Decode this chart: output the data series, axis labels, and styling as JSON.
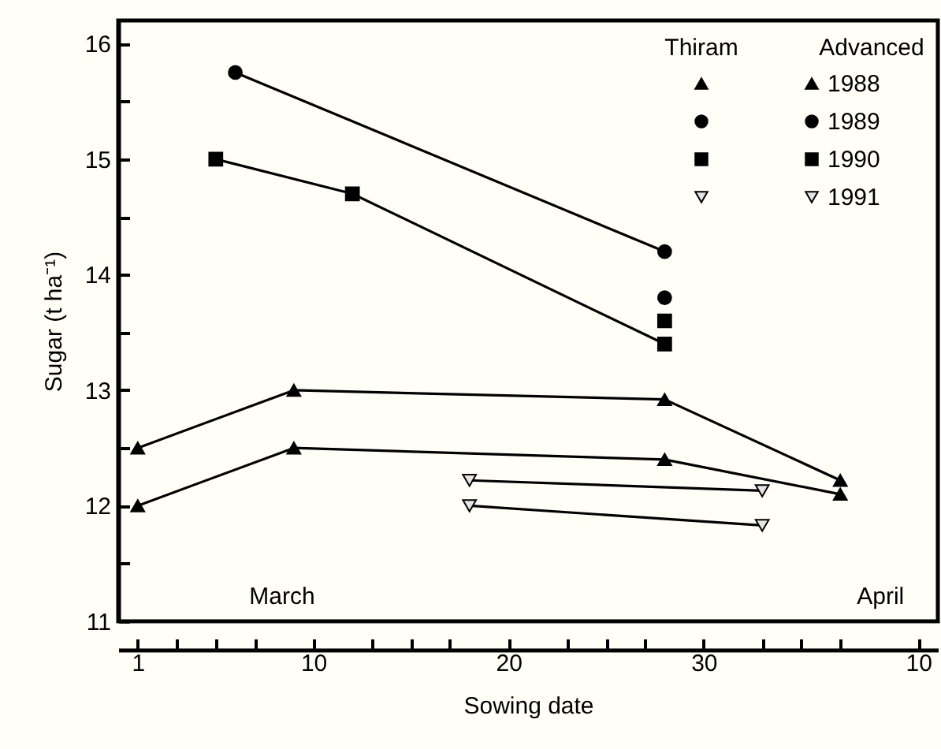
{
  "chart_data": {
    "type": "line",
    "xlabel": "Sowing date",
    "ylabel": "Sugar (t ha⁻¹)",
    "annotations": [
      "Thiram",
      "Advanced",
      "March",
      "April"
    ],
    "xlim": [
      "--02-29",
      "--04-11"
    ],
    "xticks": [
      {
        "value": "--03-01",
        "label": "1"
      },
      {
        "value": "--03-03",
        "label": null
      },
      {
        "value": "--03-05",
        "label": null
      },
      {
        "value": "--03-07",
        "label": null
      },
      {
        "value": "--03-10",
        "label": "10"
      },
      {
        "value": "--03-13",
        "label": null
      },
      {
        "value": "--03-15",
        "label": null
      },
      {
        "value": "--03-17",
        "label": null
      },
      {
        "value": "--03-20",
        "label": "20"
      },
      {
        "value": "--03-23",
        "label": null
      },
      {
        "value": "--03-25",
        "label": null
      },
      {
        "value": "--03-27",
        "label": null
      },
      {
        "value": "--03-30",
        "label": "30"
      },
      {
        "value": "--04-02",
        "label": null
      },
      {
        "value": "--04-04",
        "label": null
      },
      {
        "value": "--04-06",
        "label": null
      },
      {
        "value": "--04-10",
        "label": "10"
      }
    ],
    "ylim": [
      11,
      16.2
    ],
    "yticks": [
      11,
      {
        "value": 11.5,
        "label": null
      },
      12,
      {
        "value": 12.5,
        "label": null
      },
      13,
      {
        "value": 13.5,
        "label": null
      },
      14,
      {
        "value": 14.5,
        "label": null
      },
      15,
      {
        "value": 15.5,
        "label": null
      },
      16
    ],
    "grid": false,
    "legend": "top right",
    "series": [
      {
        "marker": "triangle",
        "color": "#000000",
        "x": [
          "--03-01",
          "--03-09",
          "--03-28",
          "--04-06"
        ],
        "values": [
          12.0,
          12.5,
          12.4,
          12.1
        ]
      },
      {
        "type": "scatter",
        "marker": "circle",
        "color": "#000000",
        "x": [
          "--03-28"
        ],
        "values": [
          13.8
        ]
      },
      {
        "type": "scatter",
        "marker": "square",
        "color": "#000000",
        "x": [
          "--03-28"
        ],
        "values": [
          13.6
        ]
      },
      {
        "marker": "triangle-down",
        "color": "#000000",
        "x": [
          "--03-18",
          "--04-02"
        ],
        "values": [
          12.0,
          11.83
        ]
      },
      {
        "name": "1988",
        "marker": "triangle",
        "color": "#000000",
        "x": [
          "--03-01",
          "--03-09",
          "--03-28",
          "--04-06"
        ],
        "values": [
          12.5,
          13.0,
          12.92,
          12.22
        ]
      },
      {
        "name": "1989",
        "marker": "circle",
        "color": "#000000",
        "x": [
          "--03-06",
          "--03-28"
        ],
        "values": [
          15.75,
          14.2
        ]
      },
      {
        "name": "1990",
        "marker": "square",
        "color": "#000000",
        "x": [
          "--03-05",
          "--03-12",
          "--03-28"
        ],
        "values": [
          15.0,
          14.7,
          13.4
        ]
      },
      {
        "name": "1991",
        "marker": "triangle-down",
        "color": "#000000",
        "x": [
          "--03-18",
          "--04-02"
        ],
        "values": [
          12.22,
          12.13
        ]
      }
    ]
  }
}
